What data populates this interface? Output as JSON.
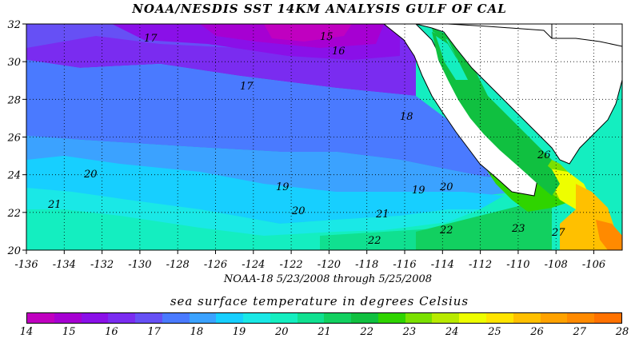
{
  "map": {
    "title": "NOAA/NESDIS SST 14KM ANALYSIS GULF OF CAL",
    "subtitle": "NOAA-18  5/23/2008 through 5/25/2008",
    "legend_title": "sea surface temperature in degrees Celsius",
    "x_ticks": [
      "-136",
      "-134",
      "-132",
      "-130",
      "-128",
      "-126",
      "-124",
      "-122",
      "-120",
      "-118",
      "-116",
      "-114",
      "-112",
      "-110",
      "-108",
      "-106"
    ],
    "y_ticks": [
      "32",
      "30",
      "28",
      "26",
      "24",
      "22",
      "20"
    ],
    "lon_range": [
      -136,
      -104.5
    ],
    "lat_range": [
      20,
      32
    ],
    "colorbar_ticks": [
      "14",
      "15",
      "16",
      "17",
      "18",
      "19",
      "20",
      "21",
      "22",
      "23",
      "24",
      "25",
      "26",
      "27",
      "28"
    ],
    "colorbar_colors": [
      "#c000c0",
      "#a600d2",
      "#8a10e8",
      "#7a2cf0",
      "#6650f5",
      "#4a7aff",
      "#3ba2ff",
      "#17cfff",
      "#1ae8e6",
      "#14eec0",
      "#10e090",
      "#12d060",
      "#10c040",
      "#2fd400",
      "#7ae000",
      "#b8ea00",
      "#eefe00",
      "#ffe400",
      "#ffc000",
      "#ffa200",
      "#ff8a00",
      "#ff7200"
    ],
    "contour_labels": [
      "15",
      "16",
      "17",
      "17",
      "18",
      "19",
      "19",
      "20",
      "20",
      "20",
      "21",
      "21",
      "22",
      "22",
      "23",
      "26",
      "27"
    ],
    "land_color": "#ffffff",
    "grid": true
  }
}
